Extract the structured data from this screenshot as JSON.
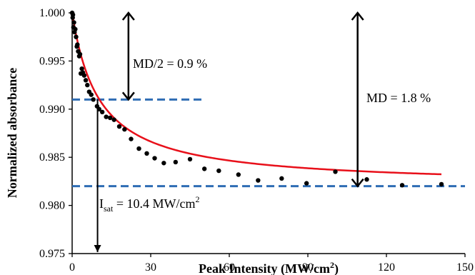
{
  "chart_data": {
    "type": "scatter",
    "xlabel": "Peak Intensity (MW/cm",
    "xlabel_sup": "2",
    "xlabel_end": ")",
    "ylabel": "Normalized absorbance",
    "xlim": [
      0,
      150
    ],
    "ylim": [
      0.975,
      1.0
    ],
    "x_ticks": [
      0,
      30,
      60,
      90,
      120,
      150
    ],
    "x_tick_labels": [
      "0",
      "30",
      "60",
      "90",
      "120",
      "150"
    ],
    "y_ticks": [
      0.975,
      0.98,
      0.985,
      0.99,
      0.995,
      1.0
    ],
    "y_tick_labels": [
      "0.975",
      "0.980",
      "0.985",
      "0.990",
      "0.995",
      "1.000"
    ],
    "grid": false,
    "series": [
      {
        "type": "scatter",
        "color": "#000000",
        "points": [
          [
            0.0,
            1.0
          ],
          [
            0.2,
            0.9995
          ],
          [
            0.3,
            0.9998
          ],
          [
            0.5,
            0.9985
          ],
          [
            0.7,
            0.999
          ],
          [
            0.9,
            0.998
          ],
          [
            1.2,
            0.9983
          ],
          [
            1.5,
            0.9975
          ],
          [
            1.8,
            0.9965
          ],
          [
            2.0,
            0.9967
          ],
          [
            2.3,
            0.996
          ],
          [
            2.7,
            0.9955
          ],
          [
            3.0,
            0.9957
          ],
          [
            3.3,
            0.9937
          ],
          [
            3.7,
            0.9942
          ],
          [
            4.1,
            0.9938
          ],
          [
            4.6,
            0.9935
          ],
          [
            5.2,
            0.993
          ],
          [
            5.8,
            0.9925
          ],
          [
            6.5,
            0.9918
          ],
          [
            7.3,
            0.9915
          ],
          [
            8.1,
            0.991
          ],
          [
            9.5,
            0.9903
          ],
          [
            10.3,
            0.99
          ],
          [
            11.5,
            0.9897
          ],
          [
            13.0,
            0.9892
          ],
          [
            14.5,
            0.9891
          ],
          [
            16.0,
            0.9889
          ],
          [
            18.0,
            0.9882
          ],
          [
            20.0,
            0.9879
          ],
          [
            22.5,
            0.9869
          ],
          [
            25.5,
            0.9859
          ],
          [
            28.5,
            0.9854
          ],
          [
            31.5,
            0.9849
          ],
          [
            35.0,
            0.9844
          ],
          [
            39.5,
            0.9845
          ],
          [
            45.0,
            0.9848
          ],
          [
            50.5,
            0.9838
          ],
          [
            56.0,
            0.9836
          ],
          [
            63.5,
            0.9832
          ],
          [
            71.0,
            0.9826
          ],
          [
            80.0,
            0.9828
          ],
          [
            89.5,
            0.9823
          ],
          [
            100.5,
            0.9835
          ],
          [
            112.5,
            0.9827
          ],
          [
            126.0,
            0.9821
          ],
          [
            141.0,
            0.9822
          ]
        ]
      },
      {
        "type": "line",
        "color": "#e8101a",
        "fit_model": "saturable_absorption",
        "Isat": 10.4,
        "md": 0.018,
        "y_min": 0.982,
        "x_range": [
          0,
          141
        ]
      }
    ],
    "reference_lines": [
      {
        "y": 0.991,
        "x_range": [
          0,
          50.5
        ],
        "color": "#2f6db4",
        "style": "dashed"
      },
      {
        "y": 0.982,
        "x_range": [
          0,
          150
        ],
        "color": "#2f6db4",
        "style": "dashed"
      }
    ],
    "arrows": [
      {
        "x": 21.5,
        "y_from": 1.0,
        "y_to": 0.991,
        "direction": "both"
      },
      {
        "x": 109,
        "y_from": 1.0,
        "y_to": 0.982,
        "direction": "both"
      },
      {
        "x": 9.7,
        "y_from": 0.991,
        "y_to": 0.975,
        "direction": "down"
      }
    ],
    "annotations": {
      "md_half": "MD/2 = 0.9 %",
      "md_full": "MD = 1.8 %",
      "isat_main": "I",
      "isat_sub": "sat",
      "isat_value": " = 10.4 MW/cm",
      "isat_sup": "2"
    }
  }
}
